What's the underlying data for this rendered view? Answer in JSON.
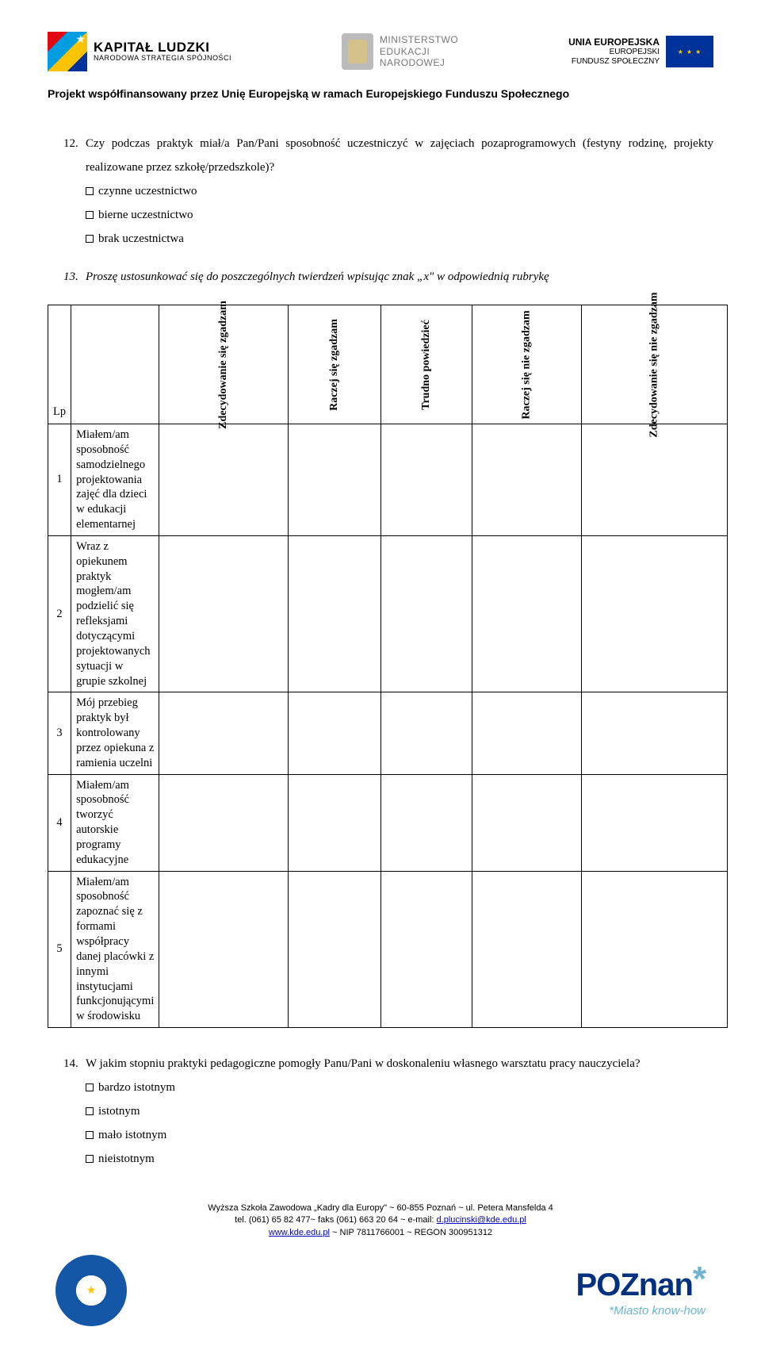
{
  "header": {
    "kl_title": "KAPITAŁ LUDZKI",
    "kl_sub": "NARODOWA STRATEGIA SPÓJNOŚCI",
    "men_line1": "MINISTERSTWO",
    "men_line2": "EDUKACJI",
    "men_line3": "NARODOWEJ",
    "eu_title": "UNIA EUROPEJSKA",
    "eu_sub1": "EUROPEJSKI",
    "eu_sub2": "FUNDUSZ SPOŁECZNY"
  },
  "project_line": "Projekt współfinansowany przez Unię Europejską w ramach Europejskiego Funduszu Społecznego",
  "q12": {
    "num": "12.",
    "text": "Czy podczas praktyk miał/a Pan/Pani sposobność uczestniczyć w zajęciach pozaprogramowych (festyny rodzinę, projekty realizowane przez szkołę/przedszkole)?",
    "opts": [
      "czynne uczestnictwo",
      "bierne uczestnictwo",
      "brak uczestnictwa"
    ]
  },
  "q13": {
    "num": "13.",
    "text": "Proszę ustosunkować się do poszczególnych twierdzeń wpisując znak „x\" w odpowiednią rubrykę"
  },
  "table": {
    "lp_head": "Lp",
    "cols": [
      "Zdecydowanie się zgadzam",
      "Raczej się zgadzam",
      "Trudno powiedzieć",
      "Raczej się nie zgadzam",
      "Zdecydowanie się nie zgadzam"
    ],
    "rows": [
      {
        "n": "1",
        "t": "Miałem/am sposobność samodzielnego projektowania zajęć dla dzieci w edukacji elementarnej"
      },
      {
        "n": "2",
        "t": "Wraz z opiekunem praktyk mogłem/am podzielić się  refleksjami dotyczącymi projektowanych sytuacji w grupie szkolnej"
      },
      {
        "n": "3",
        "t": "Mój przebieg praktyk był kontrolowany przez opiekuna z ramienia uczelni"
      },
      {
        "n": "4",
        "t": "Miałem/am sposobność tworzyć autorskie programy edukacyjne"
      },
      {
        "n": "5",
        "t": "Miałem/am sposobność zapoznać się z formami współpracy danej placówki z innymi instytucjami funkcjonującymi w środowisku"
      }
    ]
  },
  "q14": {
    "num": "14.",
    "text": "W jakim stopniu praktyki pedagogiczne pomogły Panu/Pani w doskonaleniu własnego warsztatu pracy nauczyciela?",
    "opts": [
      "bardzo istotnym",
      "istotnym",
      "mało istotnym",
      "nieistotnym"
    ]
  },
  "footer": {
    "line1": "Wyższa Szkoła Zawodowa „Kadry dla Europy\" ~ 60-855 Poznań ~ ul. Petera Mansfelda 4",
    "line2a": "tel. (061) 65 82 477~ faks (061) 663 20 64 ~ e-mail: ",
    "email": "d.plucinski@kde.edu.pl",
    "url": "www.kde.edu.pl",
    "line3b": " ~ NIP 7811766001 ~ REGON 300951312"
  },
  "poznan": {
    "main": "POZnan",
    "sub": "*Miasto know-how"
  }
}
